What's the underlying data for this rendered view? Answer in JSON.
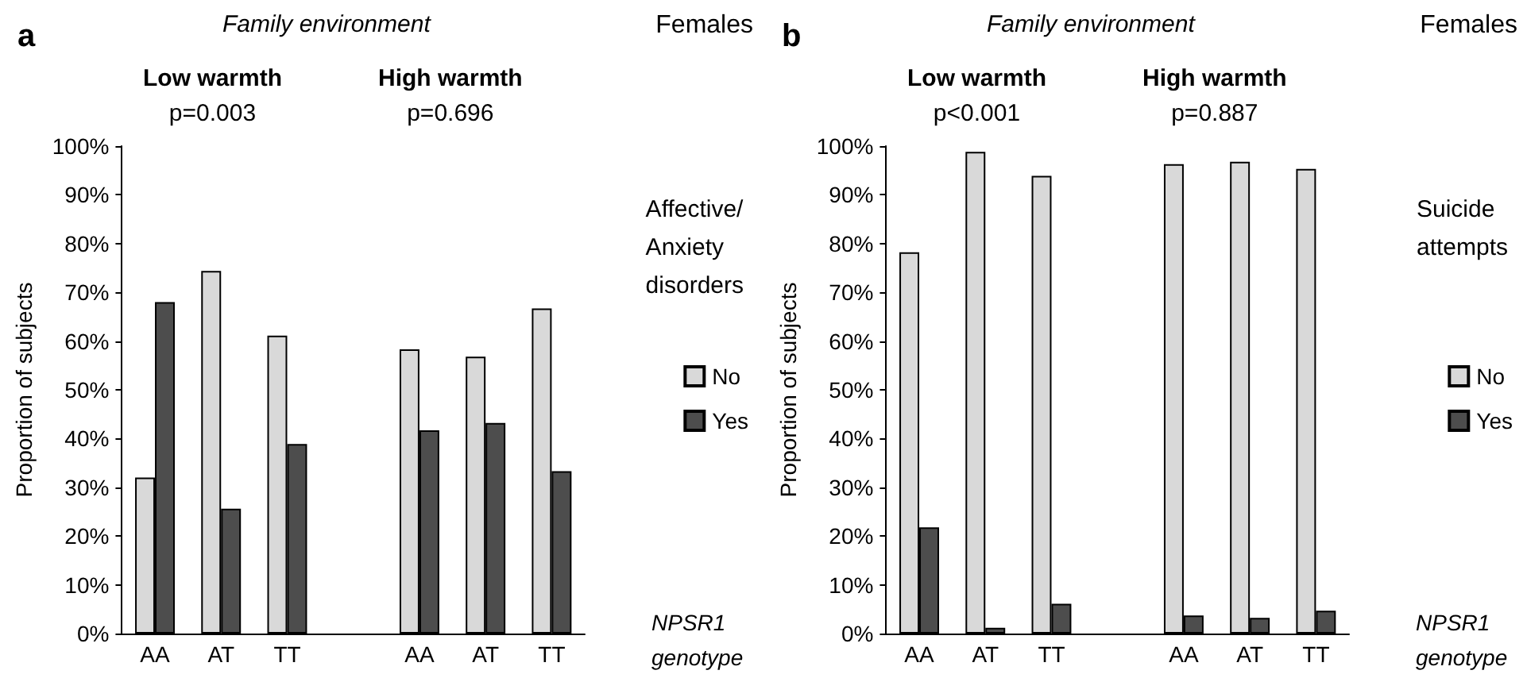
{
  "chart_data": [
    {
      "type": "bar",
      "title": "a",
      "subtitle": "Family environment",
      "annotations": [
        "Females",
        "Low warmth\np=0.003",
        "High warmth\np=0.696"
      ],
      "xlabel": "NPSR1 genotype",
      "ylabel": "Proportion of subjects",
      "legend_title": "Affective/\nAnxiety\ndisorders",
      "categories": [
        "AA",
        "AT",
        "TT",
        null,
        "AA",
        "AT",
        "TT"
      ],
      "series": [
        {
          "name": "No",
          "color": "#d9d9d9",
          "values": [
            32,
            74.4,
            61.1,
            null,
            58.3,
            56.8,
            66.7
          ]
        },
        {
          "name": "Yes",
          "color": "#4d4d4d",
          "values": [
            68,
            25.6,
            38.9,
            null,
            41.7,
            43.2,
            33.3
          ]
        }
      ],
      "ylim": [
        0,
        100
      ],
      "yticks": [
        {
          "value": 0,
          "label": "0%"
        },
        {
          "value": 10,
          "label": "10%"
        },
        {
          "value": 20,
          "label": "20%"
        },
        {
          "value": 30,
          "label": "30%"
        },
        {
          "value": 40,
          "label": "40%"
        },
        {
          "value": 50,
          "label": "50%"
        },
        {
          "value": 60,
          "label": "60%"
        },
        {
          "value": 70,
          "label": "70%"
        },
        {
          "value": 80,
          "label": "80%"
        },
        {
          "value": 90,
          "label": "90%"
        },
        {
          "value": 100,
          "label": "100%"
        }
      ],
      "grid": false,
      "legend": "right"
    },
    {
      "type": "bar",
      "title": "b",
      "subtitle": "Family environment",
      "annotations": [
        "Females",
        "Low warmth\np<0.001",
        "High warmth\np=0.887"
      ],
      "xlabel": "NPSR1 genotype",
      "ylabel": "Proportion of subjects",
      "legend_title": "Suicide\nattempts",
      "categories": [
        "AA",
        "AT",
        "TT",
        null,
        "AA",
        "AT",
        "TT"
      ],
      "series": [
        {
          "name": "No",
          "color": "#d9d9d9",
          "values": [
            78.2,
            98.8,
            93.9,
            null,
            96.3,
            96.8,
            95.3
          ]
        },
        {
          "name": "Yes",
          "color": "#4d4d4d",
          "values": [
            21.8,
            1.2,
            6.1,
            null,
            3.7,
            3.2,
            4.7
          ]
        }
      ],
      "ylim": [
        0,
        100
      ],
      "yticks": [
        {
          "value": 0,
          "label": "0%"
        },
        {
          "value": 10,
          "label": "10%"
        },
        {
          "value": 20,
          "label": "20%"
        },
        {
          "value": 30,
          "label": "30%"
        },
        {
          "value": 40,
          "label": "40%"
        },
        {
          "value": 50,
          "label": "50%"
        },
        {
          "value": 60,
          "label": "60%"
        },
        {
          "value": 70,
          "label": "70%"
        },
        {
          "value": 80,
          "label": "80%"
        },
        {
          "value": 90,
          "label": "90%"
        },
        {
          "value": 100,
          "label": "100%"
        }
      ],
      "grid": false,
      "legend": "right"
    }
  ]
}
